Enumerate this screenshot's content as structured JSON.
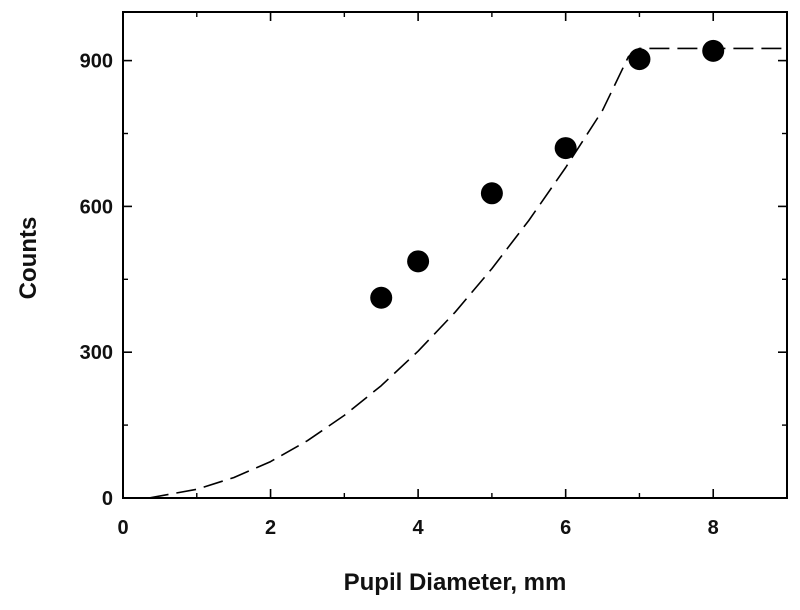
{
  "chart_data": {
    "type": "scatter",
    "title": "",
    "xlabel": "Pupil Diameter, mm",
    "ylabel": "Counts",
    "xlim": [
      0,
      9
    ],
    "ylim": [
      0,
      1000
    ],
    "x_ticks": [
      0,
      2,
      4,
      6,
      8
    ],
    "x_minor_ticks": [
      1,
      3,
      5,
      7,
      9
    ],
    "y_ticks": [
      0,
      300,
      600,
      900
    ],
    "y_minor_ticks": [
      150,
      450,
      750
    ],
    "grid": false,
    "series": [
      {
        "kind": "points",
        "marker": "filled-circle",
        "color": "#000000",
        "x": [
          3.5,
          4,
          5,
          6,
          7,
          8
        ],
        "y": [
          412,
          487,
          627,
          720,
          903,
          920
        ]
      },
      {
        "kind": "dashed-line",
        "color": "#000000",
        "x": [
          0.35,
          1,
          1.5,
          2,
          2.5,
          3,
          3.5,
          4,
          4.5,
          5,
          5.5,
          6,
          6.5,
          6.85,
          7,
          9
        ],
        "y": [
          0,
          18,
          42,
          75,
          118,
          170,
          231,
          302,
          382,
          472,
          571,
          680,
          798,
          908,
          925,
          925
        ]
      }
    ]
  }
}
